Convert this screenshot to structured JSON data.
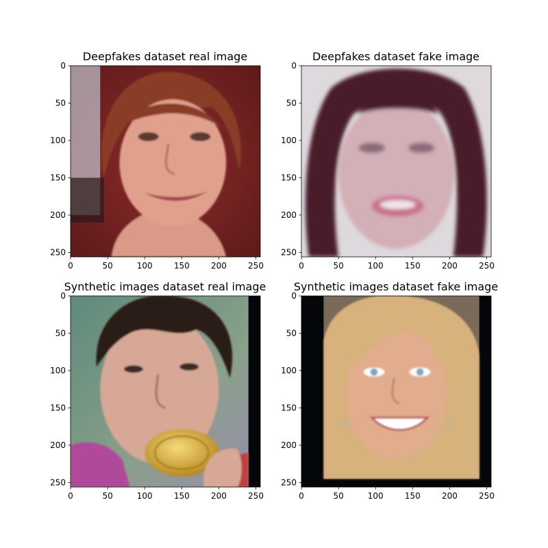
{
  "chart_data": [
    {
      "type": "image",
      "title": "Deepfakes dataset real image",
      "image_description": "photo of a smiling woman with short red-brown hair against a dark red background",
      "palette": {
        "background": "#7a2424",
        "skin": "#e0a08c",
        "hair": "#8a3c26",
        "accent": "#c9d3e0"
      },
      "xlim": [
        0,
        256
      ],
      "ylim": [
        256,
        0
      ],
      "xticks": [
        0,
        50,
        100,
        150,
        200,
        250
      ],
      "yticks": [
        0,
        50,
        100,
        150,
        200,
        250
      ]
    },
    {
      "type": "image",
      "title": "Deepfakes dataset fake image",
      "image_description": "blurry synthesized face of a woman with long dark curly hair, open mouth",
      "palette": {
        "background": "#ddd9dc",
        "skin": "#d3afb6",
        "hair": "#4a1c2a",
        "accent": "#f0e6ec"
      },
      "xlim": [
        0,
        256
      ],
      "ylim": [
        256,
        0
      ],
      "xticks": [
        0,
        50,
        100,
        150,
        200,
        250
      ],
      "yticks": [
        0,
        50,
        100,
        150,
        200,
        250
      ]
    },
    {
      "type": "image",
      "title": "Synthetic images dataset real image",
      "image_description": "photo of a young man with dark hair biting a gold medal",
      "palette": {
        "background": "#6f8f7a",
        "skin": "#d8a896",
        "hair": "#2a1e16",
        "accent": "#e3b84a"
      },
      "xlim": [
        0,
        256
      ],
      "ylim": [
        256,
        0
      ],
      "xticks": [
        0,
        50,
        100,
        150,
        200,
        250
      ],
      "yticks": [
        0,
        50,
        100,
        150,
        200,
        250
      ]
    },
    {
      "type": "image",
      "title": "Synthetic images dataset fake image",
      "image_description": "generated face of a smiling blonde woman with blue eyes and earrings",
      "palette": {
        "background": "#05060a",
        "skin": "#e2ad8c",
        "hair": "#d7b27c",
        "accent": "#7fa6c8"
      },
      "xlim": [
        0,
        256
      ],
      "ylim": [
        256,
        0
      ],
      "xticks": [
        0,
        50,
        100,
        150,
        200,
        250
      ],
      "yticks": [
        0,
        50,
        100,
        150,
        200,
        250
      ]
    }
  ]
}
